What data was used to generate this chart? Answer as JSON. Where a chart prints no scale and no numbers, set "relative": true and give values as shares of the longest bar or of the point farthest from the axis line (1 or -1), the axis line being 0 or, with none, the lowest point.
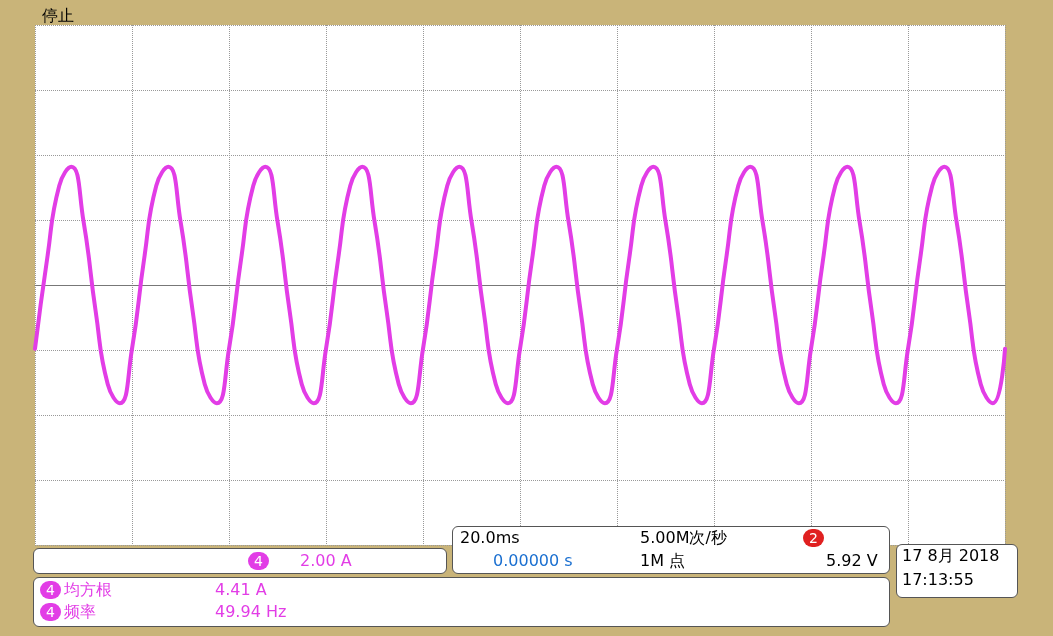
{
  "chart_data": {
    "type": "line",
    "relative": true,
    "grid": true,
    "line_style": "solid",
    "marker": "none",
    "categories": [
      null,
      null,
      null,
      null,
      null,
      null,
      null,
      null,
      null,
      null,
      null,
      null,
      null,
      null,
      null,
      null,
      null,
      null,
      null,
      null,
      null,
      null,
      null,
      null,
      null,
      null,
      null,
      null,
      null,
      null,
      null,
      null,
      null,
      null,
      null,
      null,
      null,
      null,
      null,
      null,
      null,
      null,
      null,
      null,
      null,
      null,
      null,
      null,
      null,
      null,
      null,
      null,
      null,
      null,
      null,
      null,
      null,
      null,
      null,
      null,
      null,
      null,
      null,
      null,
      null,
      null,
      null,
      null,
      null,
      null,
      null,
      null,
      null,
      null,
      null,
      null,
      null,
      null,
      null,
      null,
      null
    ],
    "series": [
      {
        "color": "#e23de6",
        "values": [
          -0.54,
          0.22,
          0.84,
          1,
          0.54,
          -0.22,
          -0.84,
          -1,
          -0.54,
          0.22,
          0.84,
          1,
          0.54,
          -0.22,
          -0.84,
          -1,
          -0.54,
          0.22,
          0.84,
          1,
          0.54,
          -0.22,
          -0.84,
          -1,
          -0.54,
          0.22,
          0.84,
          1,
          0.54,
          -0.22,
          -0.84,
          -1,
          -0.54,
          0.22,
          0.84,
          1,
          0.54,
          -0.22,
          -0.84,
          -1,
          -0.54,
          0.22,
          0.84,
          1,
          0.54,
          -0.22,
          -0.84,
          -1,
          -0.54,
          0.22,
          0.84,
          1,
          0.54,
          -0.22,
          -0.84,
          -1,
          -0.54,
          0.22,
          0.84,
          1,
          0.54,
          -0.22,
          -0.84,
          -1,
          -0.54,
          0.22,
          0.84,
          1,
          0.54,
          -0.22,
          -0.84,
          -1,
          -0.54,
          0.22,
          0.84,
          1,
          0.54,
          -0.22,
          -0.84,
          -1,
          -0.54
        ]
      }
    ],
    "annotations": [
      "停止",
      "4",
      "2.00 A",
      "20.0ms",
      "5.00M次/秒",
      "2",
      "0.00000 s",
      "1M 点",
      "5.92 V",
      "17 8月 2018",
      "17:13:55",
      "4",
      "均方根",
      "4.41 A",
      "4",
      "频率",
      "49.94 Hz"
    ]
  }
}
